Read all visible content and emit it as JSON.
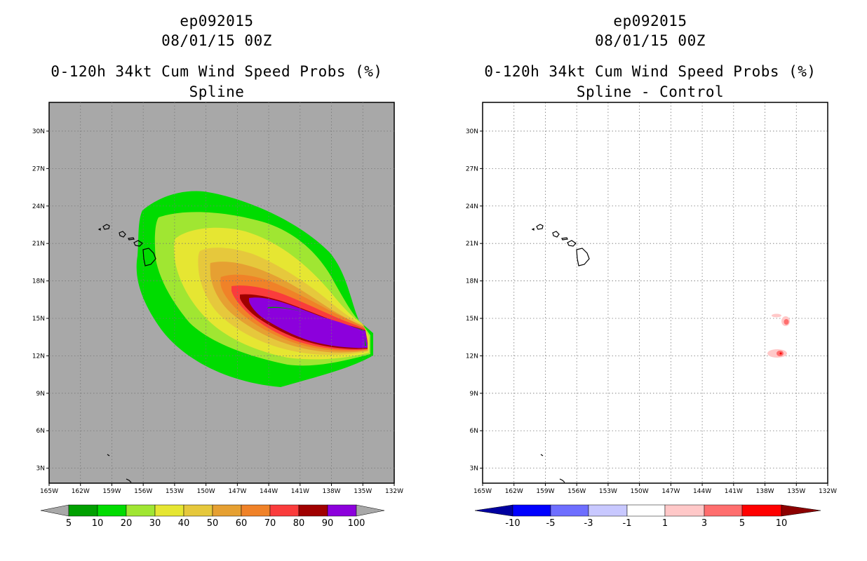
{
  "colors": {
    "land_bg": "#a8a8a8",
    "prob_bins": [
      "#00a000",
      "#00dc00",
      "#a0e632",
      "#e6e632",
      "#e6c83c",
      "#e6a032",
      "#f08228",
      "#fa3c3c",
      "#a00000",
      "#8c00dc"
    ],
    "diff_bins": [
      "#0000a0",
      "#0000ff",
      "#6e6eff",
      "#c8c8ff",
      "#ffffff",
      "#ffc8c8",
      "#ff6e6e",
      "#ff0000",
      "#8c0000"
    ]
  },
  "left": {
    "title_storm": "ep092015",
    "title_date": "08/01/15 00Z",
    "title_product": "0-120h 34kt Cum Wind Speed Probs (%)",
    "title_method": "Spline",
    "x_ticks": [
      "165W",
      "162W",
      "159W",
      "156W",
      "153W",
      "150W",
      "147W",
      "144W",
      "141W",
      "138W",
      "135W",
      "132W"
    ],
    "y_ticks": [
      "30N",
      "27N",
      "24N",
      "21N",
      "18N",
      "15N",
      "12N",
      "9N",
      "6N",
      "3N"
    ],
    "colorbar_labels": [
      "5",
      "10",
      "20",
      "30",
      "40",
      "50",
      "60",
      "70",
      "80",
      "90",
      "100"
    ]
  },
  "right": {
    "title_storm": "ep092015",
    "title_date": "08/01/15 00Z",
    "title_product": "0-120h 34kt Cum Wind Speed Probs (%)",
    "title_method": "Spline - Control",
    "x_ticks": [
      "165W",
      "162W",
      "159W",
      "156W",
      "153W",
      "150W",
      "147W",
      "144W",
      "141W",
      "138W",
      "135W",
      "132W"
    ],
    "y_ticks": [
      "30N",
      "27N",
      "24N",
      "21N",
      "18N",
      "15N",
      "12N",
      "9N",
      "6N",
      "3N"
    ],
    "colorbar_labels": [
      "-10",
      "-5",
      "-3",
      "-1",
      "1",
      "3",
      "5",
      "10"
    ]
  }
}
